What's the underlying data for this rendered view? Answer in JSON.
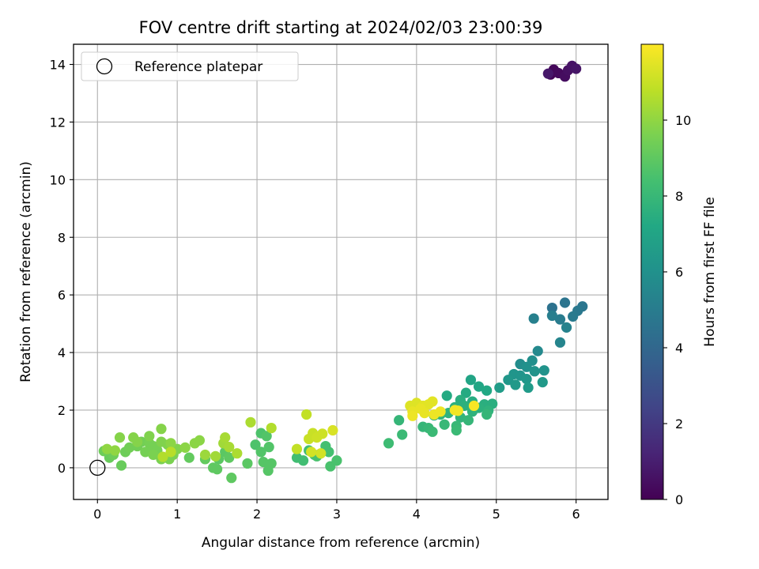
{
  "chart_data": {
    "type": "scatter",
    "title": "FOV centre drift starting at 2024/02/03 23:00:39",
    "xlabel": "Angular distance from reference (arcmin)",
    "ylabel": "Rotation from reference (arcmin)",
    "xlim": [
      -0.3,
      6.4
    ],
    "ylim": [
      -1.1,
      14.7
    ],
    "xticks": [
      0,
      1,
      2,
      3,
      4,
      5,
      6
    ],
    "yticks": [
      0,
      2,
      4,
      6,
      8,
      10,
      12,
      14
    ],
    "grid": true,
    "legend": {
      "placement": "top-left",
      "entries": [
        "Reference platepar"
      ]
    },
    "reference_point": {
      "x": 0,
      "y": 0
    },
    "colorbar": {
      "label": "Hours from first FF file",
      "colormap": "viridis",
      "range": [
        0,
        12
      ],
      "ticks": [
        0,
        2,
        4,
        6,
        8,
        10
      ]
    },
    "points": [
      {
        "x": 5.68,
        "y": 13.65,
        "h": 0.1
      },
      {
        "x": 5.72,
        "y": 13.82,
        "h": 0.2
      },
      {
        "x": 5.78,
        "y": 13.7,
        "h": 0.3
      },
      {
        "x": 5.86,
        "y": 13.58,
        "h": 0.4
      },
      {
        "x": 5.9,
        "y": 13.8,
        "h": 0.5
      },
      {
        "x": 5.95,
        "y": 13.95,
        "h": 0.6
      },
      {
        "x": 6.0,
        "y": 13.85,
        "h": 0.7
      },
      {
        "x": 5.65,
        "y": 13.68,
        "h": 0.8
      },
      {
        "x": 5.7,
        "y": 5.55,
        "h": 4.5
      },
      {
        "x": 5.86,
        "y": 5.73,
        "h": 4.6
      },
      {
        "x": 6.08,
        "y": 5.6,
        "h": 4.7
      },
      {
        "x": 6.02,
        "y": 5.45,
        "h": 4.8
      },
      {
        "x": 5.96,
        "y": 5.25,
        "h": 4.9
      },
      {
        "x": 5.8,
        "y": 5.15,
        "h": 5.0
      },
      {
        "x": 5.7,
        "y": 5.28,
        "h": 5.1
      },
      {
        "x": 5.47,
        "y": 5.18,
        "h": 5.2
      },
      {
        "x": 5.88,
        "y": 4.87,
        "h": 5.3
      },
      {
        "x": 5.8,
        "y": 4.35,
        "h": 5.4
      },
      {
        "x": 5.52,
        "y": 4.05,
        "h": 5.6
      },
      {
        "x": 5.3,
        "y": 3.6,
        "h": 5.8
      },
      {
        "x": 5.45,
        "y": 3.72,
        "h": 5.9
      },
      {
        "x": 5.38,
        "y": 3.5,
        "h": 6.0
      },
      {
        "x": 5.6,
        "y": 3.38,
        "h": 6.1
      },
      {
        "x": 5.48,
        "y": 3.35,
        "h": 6.1
      },
      {
        "x": 5.22,
        "y": 3.25,
        "h": 6.2
      },
      {
        "x": 5.3,
        "y": 3.2,
        "h": 6.2
      },
      {
        "x": 5.15,
        "y": 3.05,
        "h": 6.3
      },
      {
        "x": 5.38,
        "y": 3.08,
        "h": 6.3
      },
      {
        "x": 5.58,
        "y": 2.97,
        "h": 6.4
      },
      {
        "x": 5.24,
        "y": 2.88,
        "h": 6.4
      },
      {
        "x": 5.4,
        "y": 2.78,
        "h": 6.5
      },
      {
        "x": 5.04,
        "y": 2.78,
        "h": 6.6
      },
      {
        "x": 4.68,
        "y": 3.05,
        "h": 7.0
      },
      {
        "x": 4.78,
        "y": 2.82,
        "h": 7.1
      },
      {
        "x": 4.88,
        "y": 2.68,
        "h": 7.2
      },
      {
        "x": 4.62,
        "y": 2.6,
        "h": 7.3
      },
      {
        "x": 4.38,
        "y": 2.5,
        "h": 7.3
      },
      {
        "x": 4.7,
        "y": 2.3,
        "h": 7.4
      },
      {
        "x": 4.85,
        "y": 2.2,
        "h": 7.5
      },
      {
        "x": 4.95,
        "y": 2.22,
        "h": 7.5
      },
      {
        "x": 4.55,
        "y": 2.35,
        "h": 7.5
      },
      {
        "x": 4.6,
        "y": 2.15,
        "h": 7.6
      },
      {
        "x": 4.48,
        "y": 2.1,
        "h": 7.6
      },
      {
        "x": 4.78,
        "y": 2.08,
        "h": 7.6
      },
      {
        "x": 4.9,
        "y": 1.98,
        "h": 7.7
      },
      {
        "x": 4.7,
        "y": 1.95,
        "h": 7.7
      },
      {
        "x": 4.4,
        "y": 1.9,
        "h": 7.7
      },
      {
        "x": 4.3,
        "y": 1.85,
        "h": 7.8
      },
      {
        "x": 4.22,
        "y": 1.82,
        "h": 7.8
      },
      {
        "x": 4.55,
        "y": 1.75,
        "h": 7.8
      },
      {
        "x": 4.65,
        "y": 1.65,
        "h": 7.9
      },
      {
        "x": 4.88,
        "y": 1.85,
        "h": 7.9
      },
      {
        "x": 3.78,
        "y": 1.65,
        "h": 7.9
      },
      {
        "x": 4.08,
        "y": 1.42,
        "h": 7.9
      },
      {
        "x": 4.15,
        "y": 1.38,
        "h": 8.0
      },
      {
        "x": 4.35,
        "y": 1.5,
        "h": 8.0
      },
      {
        "x": 4.5,
        "y": 1.45,
        "h": 8.0
      },
      {
        "x": 4.2,
        "y": 1.25,
        "h": 8.1
      },
      {
        "x": 4.5,
        "y": 1.3,
        "h": 8.1
      },
      {
        "x": 3.82,
        "y": 1.15,
        "h": 8.1
      },
      {
        "x": 3.65,
        "y": 0.85,
        "h": 8.2
      },
      {
        "x": 2.5,
        "y": 0.35,
        "h": 8.3
      },
      {
        "x": 2.58,
        "y": 0.25,
        "h": 8.3
      },
      {
        "x": 2.65,
        "y": 0.6,
        "h": 8.3
      },
      {
        "x": 2.72,
        "y": 0.45,
        "h": 8.4
      },
      {
        "x": 2.86,
        "y": 0.75,
        "h": 8.4
      },
      {
        "x": 2.9,
        "y": 0.55,
        "h": 8.4
      },
      {
        "x": 2.92,
        "y": 0.05,
        "h": 8.5
      },
      {
        "x": 3.0,
        "y": 0.25,
        "h": 8.5
      },
      {
        "x": 2.75,
        "y": 0.4,
        "h": 8.5
      },
      {
        "x": 1.98,
        "y": 0.8,
        "h": 8.6
      },
      {
        "x": 2.05,
        "y": 1.2,
        "h": 8.6
      },
      {
        "x": 2.12,
        "y": 1.1,
        "h": 8.7
      },
      {
        "x": 2.15,
        "y": 0.72,
        "h": 8.7
      },
      {
        "x": 2.05,
        "y": 0.55,
        "h": 8.7
      },
      {
        "x": 2.08,
        "y": 0.2,
        "h": 8.8
      },
      {
        "x": 2.18,
        "y": 0.15,
        "h": 8.8
      },
      {
        "x": 2.14,
        "y": -0.1,
        "h": 8.8
      },
      {
        "x": 1.88,
        "y": 0.15,
        "h": 8.9
      },
      {
        "x": 1.6,
        "y": 0.55,
        "h": 8.9
      },
      {
        "x": 1.52,
        "y": 0.3,
        "h": 8.9
      },
      {
        "x": 1.65,
        "y": 0.35,
        "h": 9.0
      },
      {
        "x": 1.45,
        "y": 0.0,
        "h": 9.0
      },
      {
        "x": 1.5,
        "y": -0.05,
        "h": 9.0
      },
      {
        "x": 1.68,
        "y": -0.35,
        "h": 9.0
      },
      {
        "x": 1.15,
        "y": 0.35,
        "h": 9.1
      },
      {
        "x": 1.35,
        "y": 0.3,
        "h": 9.1
      },
      {
        "x": 0.3,
        "y": 0.08,
        "h": 9.2
      },
      {
        "x": 0.15,
        "y": 0.35,
        "h": 9.2
      },
      {
        "x": 0.08,
        "y": 0.58,
        "h": 9.3
      },
      {
        "x": 0.2,
        "y": 0.45,
        "h": 9.3
      },
      {
        "x": 0.35,
        "y": 0.55,
        "h": 9.3
      },
      {
        "x": 0.4,
        "y": 0.7,
        "h": 9.4
      },
      {
        "x": 0.5,
        "y": 0.75,
        "h": 9.4
      },
      {
        "x": 0.55,
        "y": 0.9,
        "h": 9.4
      },
      {
        "x": 0.65,
        "y": 0.85,
        "h": 9.5
      },
      {
        "x": 0.7,
        "y": 0.75,
        "h": 9.5
      },
      {
        "x": 0.75,
        "y": 0.6,
        "h": 9.5
      },
      {
        "x": 0.6,
        "y": 0.55,
        "h": 9.5
      },
      {
        "x": 0.7,
        "y": 0.45,
        "h": 9.6
      },
      {
        "x": 0.8,
        "y": 0.3,
        "h": 9.6
      },
      {
        "x": 0.9,
        "y": 0.3,
        "h": 9.6
      },
      {
        "x": 0.95,
        "y": 0.45,
        "h": 9.6
      },
      {
        "x": 1.0,
        "y": 0.65,
        "h": 9.7
      },
      {
        "x": 0.88,
        "y": 0.8,
        "h": 9.7
      },
      {
        "x": 0.8,
        "y": 0.9,
        "h": 9.7
      },
      {
        "x": 0.65,
        "y": 1.1,
        "h": 9.7
      },
      {
        "x": 0.45,
        "y": 1.05,
        "h": 9.8
      },
      {
        "x": 0.28,
        "y": 1.05,
        "h": 9.8
      },
      {
        "x": 0.8,
        "y": 1.35,
        "h": 9.8
      },
      {
        "x": 0.5,
        "y": 0.9,
        "h": 9.8
      },
      {
        "x": 1.1,
        "y": 0.7,
        "h": 9.9
      },
      {
        "x": 1.22,
        "y": 0.85,
        "h": 9.9
      },
      {
        "x": 1.28,
        "y": 0.95,
        "h": 9.9
      },
      {
        "x": 0.92,
        "y": 0.85,
        "h": 9.9
      },
      {
        "x": 0.22,
        "y": 0.6,
        "h": 10.0
      },
      {
        "x": 0.12,
        "y": 0.65,
        "h": 10.0
      },
      {
        "x": 1.35,
        "y": 0.45,
        "h": 10.2
      },
      {
        "x": 1.48,
        "y": 0.4,
        "h": 10.3
      },
      {
        "x": 1.58,
        "y": 0.85,
        "h": 10.3
      },
      {
        "x": 1.6,
        "y": 1.05,
        "h": 10.4
      },
      {
        "x": 1.65,
        "y": 0.72,
        "h": 10.4
      },
      {
        "x": 1.75,
        "y": 0.5,
        "h": 10.5
      },
      {
        "x": 1.92,
        "y": 1.58,
        "h": 10.5
      },
      {
        "x": 2.18,
        "y": 1.38,
        "h": 10.6
      },
      {
        "x": 0.82,
        "y": 0.38,
        "h": 10.6
      },
      {
        "x": 0.92,
        "y": 0.55,
        "h": 10.7
      },
      {
        "x": 2.5,
        "y": 0.65,
        "h": 10.9
      },
      {
        "x": 2.62,
        "y": 1.85,
        "h": 10.9
      },
      {
        "x": 2.65,
        "y": 1.0,
        "h": 11.0
      },
      {
        "x": 2.7,
        "y": 1.2,
        "h": 11.0
      },
      {
        "x": 2.75,
        "y": 1.05,
        "h": 11.1
      },
      {
        "x": 2.82,
        "y": 1.18,
        "h": 11.1
      },
      {
        "x": 2.68,
        "y": 0.55,
        "h": 11.2
      },
      {
        "x": 2.8,
        "y": 0.5,
        "h": 11.2
      },
      {
        "x": 2.95,
        "y": 1.3,
        "h": 11.3
      },
      {
        "x": 3.92,
        "y": 2.15,
        "h": 11.4
      },
      {
        "x": 4.0,
        "y": 2.25,
        "h": 11.4
      },
      {
        "x": 4.08,
        "y": 2.15,
        "h": 11.5
      },
      {
        "x": 4.15,
        "y": 2.2,
        "h": 11.5
      },
      {
        "x": 4.2,
        "y": 2.3,
        "h": 11.5
      },
      {
        "x": 4.05,
        "y": 2.05,
        "h": 11.6
      },
      {
        "x": 3.95,
        "y": 1.95,
        "h": 11.6
      },
      {
        "x": 4.1,
        "y": 1.9,
        "h": 11.6
      },
      {
        "x": 4.22,
        "y": 1.85,
        "h": 11.7
      },
      {
        "x": 4.3,
        "y": 1.95,
        "h": 11.7
      },
      {
        "x": 3.95,
        "y": 1.8,
        "h": 11.7
      },
      {
        "x": 4.48,
        "y": 2.0,
        "h": 11.8
      },
      {
        "x": 4.52,
        "y": 1.98,
        "h": 11.8
      },
      {
        "x": 4.72,
        "y": 2.15,
        "h": 11.9
      }
    ]
  }
}
